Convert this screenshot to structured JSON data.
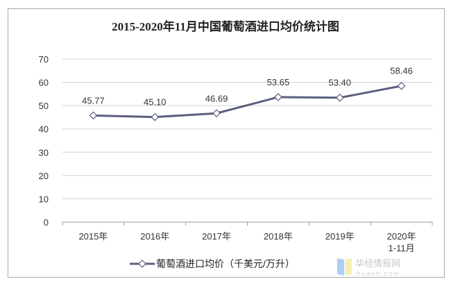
{
  "chart_data": {
    "type": "line",
    "title": "2015-2020年11月中国葡萄酒进口均价统计图",
    "categories": [
      "2015年",
      "2016年",
      "2017年",
      "2018年",
      "2019年",
      "2020年\n1-11月"
    ],
    "category_lines": [
      [
        "2015年"
      ],
      [
        "2016年"
      ],
      [
        "2017年"
      ],
      [
        "2018年"
      ],
      [
        "2019年"
      ],
      [
        "2020年",
        "1-11月"
      ]
    ],
    "series": [
      {
        "name": "葡萄酒进口均价（千美元/万升）",
        "values": [
          45.77,
          45.1,
          46.69,
          53.65,
          53.4,
          58.46
        ],
        "color": "#5b5f7e",
        "marker": "diamond-open"
      }
    ],
    "data_labels": [
      "45.77",
      "45.10",
      "46.69",
      "53.65",
      "53.40",
      "58.46"
    ],
    "ylim": [
      0,
      70
    ],
    "yticks": [
      0,
      10,
      20,
      30,
      40,
      50,
      60,
      70
    ],
    "grid": "horizontal",
    "legend_position": "bottom"
  },
  "watermark": {
    "text": "华经情报网",
    "subtext": "huaon.com"
  }
}
